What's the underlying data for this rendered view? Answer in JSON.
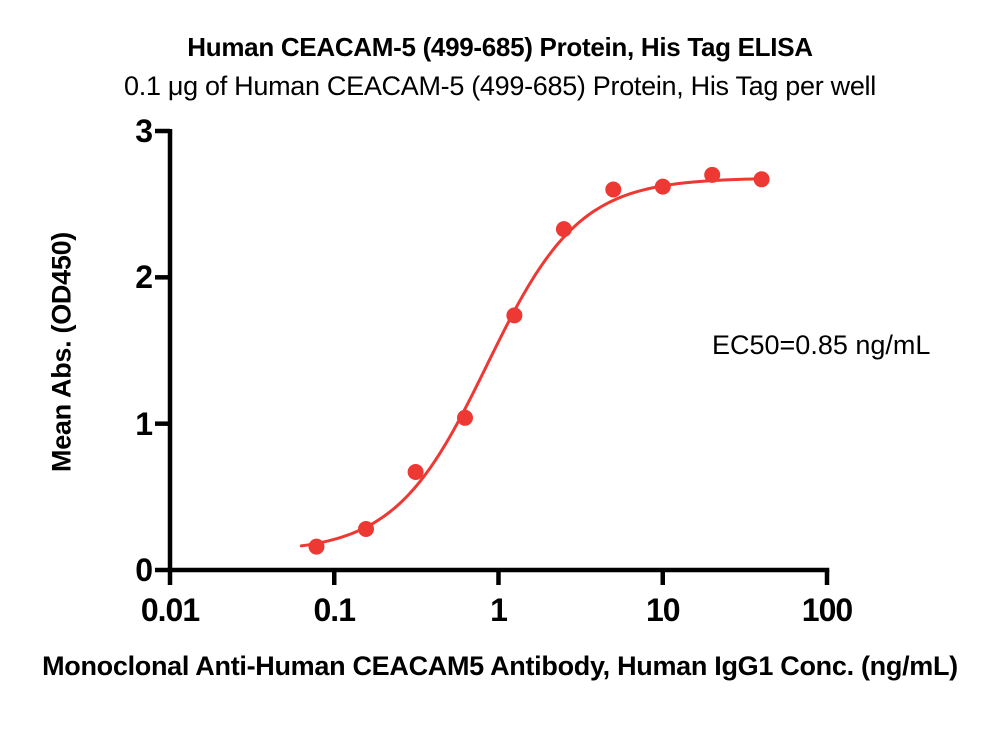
{
  "chart_data": {
    "type": "scatter",
    "title": "Human CEACAM-5 (499-685) Protein, His Tag ELISA",
    "subtitle": "0.1 μg of Human CEACAM-5 (499-685) Protein, His Tag per well",
    "xlabel": "Monoclonal Anti-Human CEACAM5 Antibody, Human IgG1 Conc. (ng/mL)",
    "ylabel": "Mean Abs. (OD450)",
    "annotation": "EC50=0.85 ng/mL",
    "ec50_ng_ml": 0.85,
    "x_scale": "log10",
    "xlim": [
      0.01,
      100
    ],
    "ylim": [
      0,
      3
    ],
    "x_ticks": [
      0.01,
      0.1,
      1,
      10,
      100
    ],
    "x_tick_labels": [
      "0.01",
      "0.1",
      "1",
      "10",
      "100"
    ],
    "y_ticks": [
      0,
      1,
      2,
      3
    ],
    "y_tick_labels": [
      "0",
      "1",
      "2",
      "3"
    ],
    "grid": false,
    "legend": "none",
    "series": [
      {
        "name": "Human CEACAM-5 (499-685) Protein, His Tag",
        "x": [
          0.078,
          0.156,
          0.313,
          0.625,
          1.25,
          2.5,
          5,
          10,
          20,
          40
        ],
        "y": [
          0.16,
          0.28,
          0.67,
          1.04,
          1.74,
          2.33,
          2.6,
          2.62,
          2.7,
          2.67
        ]
      }
    ],
    "curve_fit": {
      "model": "4PL",
      "bottom": 0.12,
      "top": 2.68,
      "ec50": 0.85,
      "hill": 1.55,
      "x_draw_range": [
        0.063,
        40.5
      ]
    },
    "colors": {
      "curve": "#ED3833",
      "points": "#ED3833",
      "axis": "#000000",
      "text": "#000000"
    }
  }
}
